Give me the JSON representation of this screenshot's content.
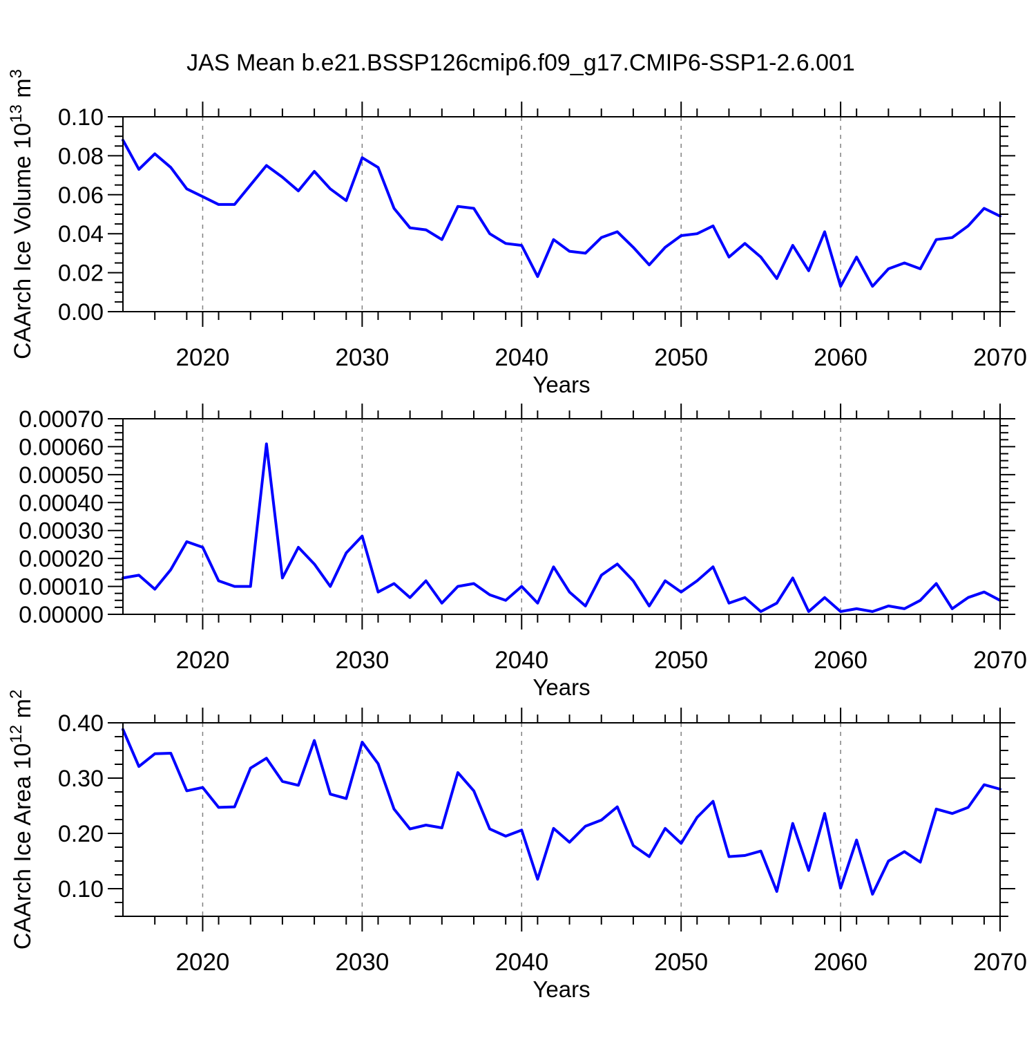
{
  "title": "JAS Mean b.e21.BSSP126cmip6.f09_g17.CMIP6-SSP1-2.6.001",
  "colors": {
    "line": "#0000ff",
    "axis": "#000000",
    "grid": "#808080",
    "background": "#ffffff",
    "text": "#000000"
  },
  "x_axis": {
    "label": "Years",
    "start": 2015,
    "end": 2070,
    "major_ticks": [
      2020,
      2030,
      2040,
      2050,
      2060,
      2070
    ],
    "major_tick_labels": [
      "2020",
      "2030",
      "2040",
      "2050",
      "2060",
      "2070"
    ],
    "minor_step_years": 2,
    "grid_years": [
      2020,
      2030,
      2040,
      2050,
      2060
    ]
  },
  "years": [
    2015,
    2016,
    2017,
    2018,
    2019,
    2020,
    2021,
    2022,
    2023,
    2024,
    2025,
    2026,
    2027,
    2028,
    2029,
    2030,
    2031,
    2032,
    2033,
    2034,
    2035,
    2036,
    2037,
    2038,
    2039,
    2040,
    2041,
    2042,
    2043,
    2044,
    2045,
    2046,
    2047,
    2048,
    2049,
    2050,
    2051,
    2052,
    2053,
    2054,
    2055,
    2056,
    2057,
    2058,
    2059,
    2060,
    2061,
    2062,
    2063,
    2064,
    2065,
    2066,
    2067,
    2068,
    2069,
    2070
  ],
  "chart_data": [
    {
      "type": "line",
      "panel": "ice-volume",
      "title": "",
      "ylabel": "CAArch Ice Volume 10¹³ m³",
      "ylabel_parts": [
        {
          "text": "CAArch Ice Volume 10"
        },
        {
          "text": "13",
          "sup": true
        },
        {
          "text": " m"
        },
        {
          "text": "3",
          "sup": true
        }
      ],
      "xlabel": "Years",
      "ylim": [
        0.0,
        0.1
      ],
      "ytick_values": [
        0.0,
        0.02,
        0.04,
        0.06,
        0.08,
        0.1
      ],
      "ytick_labels": [
        "0.00",
        "0.02",
        "0.04",
        "0.06",
        "0.08",
        "0.10"
      ],
      "yminor_step": 0.005,
      "grid": "vertical-dashed",
      "legend": "none",
      "values": [
        0.088,
        0.073,
        0.081,
        0.074,
        0.063,
        0.059,
        0.055,
        0.055,
        0.065,
        0.075,
        0.069,
        0.062,
        0.072,
        0.063,
        0.057,
        0.079,
        0.074,
        0.053,
        0.043,
        0.042,
        0.037,
        0.054,
        0.053,
        0.04,
        0.035,
        0.034,
        0.018,
        0.037,
        0.031,
        0.03,
        0.038,
        0.041,
        0.033,
        0.024,
        0.033,
        0.039,
        0.04,
        0.044,
        0.028,
        0.035,
        0.028,
        0.017,
        0.034,
        0.021,
        0.041,
        0.013,
        0.028,
        0.013,
        0.022,
        0.025,
        0.022,
        0.037,
        0.038,
        0.044,
        0.053,
        0.049
      ]
    },
    {
      "type": "line",
      "panel": "ice-volume-tendency",
      "title": "",
      "ylabel": "",
      "ylabel_parts": [],
      "xlabel": "Years",
      "ylim": [
        0.0,
        0.0007
      ],
      "ytick_values": [
        0.0,
        0.0001,
        0.0002,
        0.0003,
        0.0004,
        0.0005,
        0.0006,
        0.0007
      ],
      "ytick_labels": [
        "0.00000",
        "0.00010",
        "0.00020",
        "0.00030",
        "0.00040",
        "0.00050",
        "0.00060",
        "0.00070"
      ],
      "yminor_step": 2.5e-05,
      "grid": "vertical-dashed",
      "legend": "none",
      "values": [
        0.00013,
        0.00014,
        9e-05,
        0.00016,
        0.00026,
        0.00024,
        0.00012,
        0.0001,
        0.0001,
        0.00061,
        0.00013,
        0.00024,
        0.00018,
        0.0001,
        0.00022,
        0.00028,
        8e-05,
        0.00011,
        6e-05,
        0.00012,
        4e-05,
        0.0001,
        0.00011,
        7e-05,
        5e-05,
        0.0001,
        4e-05,
        0.00017,
        8e-05,
        3e-05,
        0.00014,
        0.00018,
        0.00012,
        3e-05,
        0.00012,
        8e-05,
        0.00012,
        0.00017,
        4e-05,
        6e-05,
        1e-05,
        4e-05,
        0.00013,
        1e-05,
        6e-05,
        1e-05,
        2e-05,
        1e-05,
        3e-05,
        2e-05,
        5e-05,
        0.00011,
        2e-05,
        6e-05,
        8e-05,
        5e-05
      ]
    },
    {
      "type": "line",
      "panel": "ice-area",
      "title": "",
      "ylabel": "CAArch Ice Area 10¹² m²",
      "ylabel_parts": [
        {
          "text": "CAArch Ice Area 10"
        },
        {
          "text": "12",
          "sup": true
        },
        {
          "text": " m"
        },
        {
          "text": "2",
          "sup": true
        }
      ],
      "xlabel": "Years",
      "ylim": [
        0.05,
        0.4
      ],
      "ytick_values": [
        0.1,
        0.2,
        0.3,
        0.4
      ],
      "ytick_labels": [
        "0.10",
        "0.20",
        "0.30",
        "0.40"
      ],
      "yminor_step": 0.025,
      "grid": "vertical-dashed",
      "legend": "none",
      "values": [
        0.388,
        0.321,
        0.344,
        0.345,
        0.277,
        0.283,
        0.247,
        0.248,
        0.318,
        0.336,
        0.294,
        0.287,
        0.368,
        0.271,
        0.263,
        0.365,
        0.326,
        0.244,
        0.208,
        0.215,
        0.21,
        0.31,
        0.277,
        0.208,
        0.195,
        0.206,
        0.117,
        0.209,
        0.184,
        0.213,
        0.224,
        0.248,
        0.178,
        0.158,
        0.209,
        0.182,
        0.229,
        0.258,
        0.158,
        0.16,
        0.168,
        0.095,
        0.218,
        0.133,
        0.236,
        0.101,
        0.188,
        0.09,
        0.15,
        0.167,
        0.148,
        0.244,
        0.236,
        0.247,
        0.288,
        0.28
      ]
    }
  ]
}
